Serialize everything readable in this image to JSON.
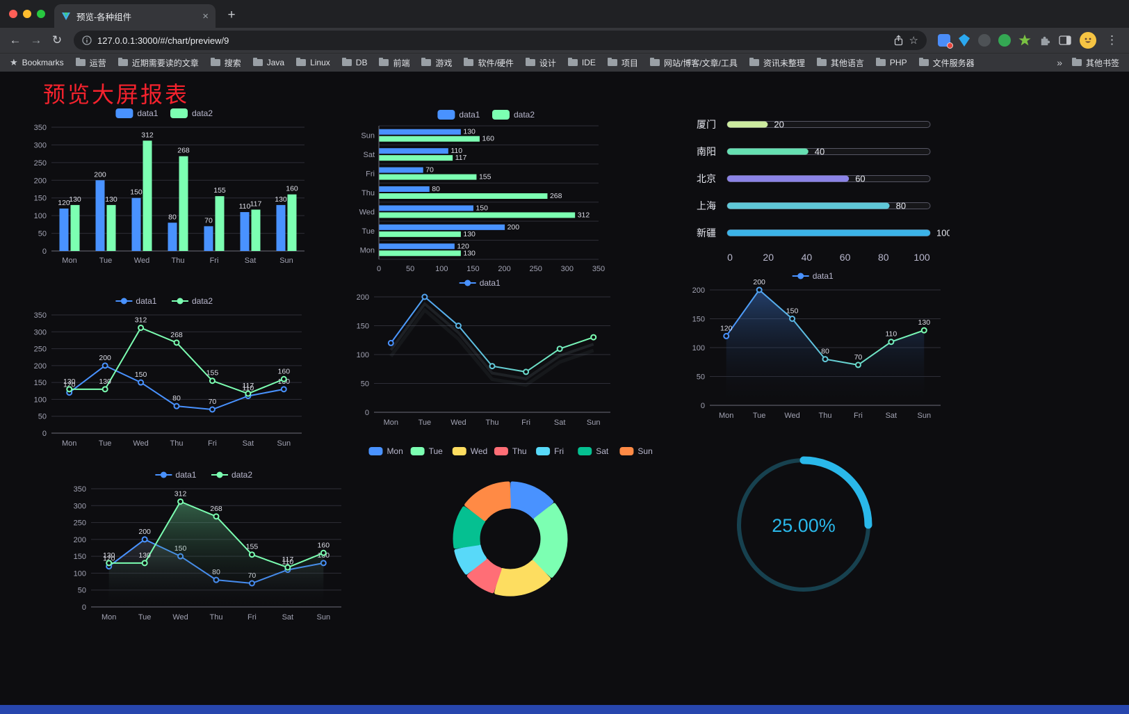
{
  "browser": {
    "tab_title": "预览-各种组件",
    "url": "127.0.0.1:3000/#/chart/preview/9",
    "bookmarks_bar": {
      "first_item": "Bookmarks",
      "folders": [
        "运营",
        "近期需要读的文章",
        "搜索",
        "Java",
        "Linux",
        "DB",
        "前端",
        "游戏",
        "软件/硬件",
        "设计",
        "IDE",
        "项目",
        "网站/博客/文章/工具",
        "资讯未整理",
        "其他语言",
        "PHP",
        "文件服务器"
      ],
      "overflow": "»",
      "other_bookmarks": "其他书签"
    }
  },
  "page": {
    "title": "预览大屏报表",
    "title_color": "#f5222d"
  },
  "chart_data": [
    {
      "id": "grouped-bar",
      "type": "bar",
      "categories": [
        "Mon",
        "Tue",
        "Wed",
        "Thu",
        "Fri",
        "Sat",
        "Sun"
      ],
      "series": [
        {
          "name": "data1",
          "color": "#4992ff",
          "values": [
            120,
            200,
            150,
            80,
            70,
            110,
            130
          ]
        },
        {
          "name": "data2",
          "color": "#7cffb2",
          "values": [
            130,
            130,
            312,
            268,
            155,
            117,
            160
          ]
        }
      ],
      "ylim": [
        0,
        350
      ],
      "ytick_step": 50,
      "value_labels": true,
      "legend_position": "top"
    },
    {
      "id": "horizontal-bar",
      "type": "bar-horizontal",
      "categories": [
        "Mon",
        "Tue",
        "Wed",
        "Thu",
        "Fri",
        "Sat",
        "Sun"
      ],
      "series": [
        {
          "name": "data1",
          "color": "#4992ff",
          "values": [
            120,
            200,
            150,
            80,
            70,
            110,
            130
          ]
        },
        {
          "name": "data2",
          "color": "#7cffb2",
          "values": [
            130,
            130,
            312,
            268,
            155,
            117,
            160
          ]
        }
      ],
      "xlim": [
        0,
        350
      ],
      "xtick_step": 50,
      "value_labels": true,
      "legend_position": "top"
    },
    {
      "id": "progress-list",
      "type": "progress",
      "xlim": [
        0,
        100
      ],
      "xticks": [
        0,
        20,
        40,
        60,
        80,
        100
      ],
      "rows": [
        {
          "label": "厦门",
          "value": 20,
          "color": "#cdeb9f"
        },
        {
          "label": "南阳",
          "value": 40,
          "color": "#66e0b2"
        },
        {
          "label": "北京",
          "value": 60,
          "color": "#8b83e6"
        },
        {
          "label": "上海",
          "value": 80,
          "color": "#5fc8d8"
        },
        {
          "label": "新疆",
          "value": 100,
          "color": "#3bb3e8"
        }
      ]
    },
    {
      "id": "line-two-series",
      "type": "line",
      "categories": [
        "Mon",
        "Tue",
        "Wed",
        "Thu",
        "Fri",
        "Sat",
        "Sun"
      ],
      "series": [
        {
          "name": "data1",
          "color": "#4992ff",
          "values": [
            120,
            200,
            150,
            80,
            70,
            110,
            130
          ]
        },
        {
          "name": "data2",
          "color": "#7cffb2",
          "values": [
            130,
            130,
            312,
            268,
            155,
            117,
            160
          ]
        }
      ],
      "ylim": [
        0,
        350
      ],
      "ytick_step": 50,
      "value_labels": true,
      "legend_position": "top"
    },
    {
      "id": "line-gradient",
      "type": "line",
      "categories": [
        "Mon",
        "Tue",
        "Wed",
        "Thu",
        "Fri",
        "Sat",
        "Sun"
      ],
      "series": [
        {
          "name": "data1",
          "gradient": [
            "#4992ff",
            "#7cffb2"
          ],
          "values": [
            120,
            200,
            150,
            80,
            70,
            110,
            130
          ],
          "echo": true
        }
      ],
      "ylim": [
        0,
        200
      ],
      "ytick_step": 50,
      "value_labels": false,
      "legend_position": "top"
    },
    {
      "id": "line-area",
      "type": "line",
      "categories": [
        "Mon",
        "Tue",
        "Wed",
        "Thu",
        "Fri",
        "Sat",
        "Sun"
      ],
      "series": [
        {
          "name": "data1",
          "gradient": [
            "#4992ff",
            "#7cffb2"
          ],
          "values": [
            120,
            200,
            150,
            80,
            70,
            110,
            130
          ],
          "area": "rgba(73,146,255,0.38)"
        }
      ],
      "ylim": [
        0,
        200
      ],
      "ytick_step": 50,
      "value_labels": true,
      "legend_position": "top"
    },
    {
      "id": "line-area-two-series",
      "type": "line",
      "categories": [
        "Mon",
        "Tue",
        "Wed",
        "Thu",
        "Fri",
        "Sat",
        "Sun"
      ],
      "series": [
        {
          "name": "data1",
          "color": "#4992ff",
          "values": [
            120,
            200,
            150,
            80,
            70,
            110,
            130
          ],
          "area": "rgba(150,165,190,0.22)"
        },
        {
          "name": "data2",
          "color": "#7cffb2",
          "values": [
            130,
            130,
            312,
            268,
            155,
            117,
            160
          ],
          "area": "rgba(124,255,178,0.35)"
        }
      ],
      "ylim": [
        0,
        350
      ],
      "ytick_step": 50,
      "value_labels": true,
      "legend_position": "top"
    },
    {
      "id": "donut",
      "type": "donut",
      "categories": [
        "Mon",
        "Tue",
        "Wed",
        "Thu",
        "Fri",
        "Sat",
        "Sun"
      ],
      "values": [
        120,
        200,
        150,
        80,
        70,
        110,
        130
      ],
      "colors": [
        "#4992ff",
        "#7cffb2",
        "#fddd60",
        "#ff6e76",
        "#58d9f9",
        "#05c091",
        "#ff8a45"
      ],
      "legend_position": "top"
    },
    {
      "id": "gauge",
      "type": "gauge",
      "value": 25,
      "label": "25.00%",
      "color": "#2ab8ea",
      "track": "#17414f"
    }
  ]
}
